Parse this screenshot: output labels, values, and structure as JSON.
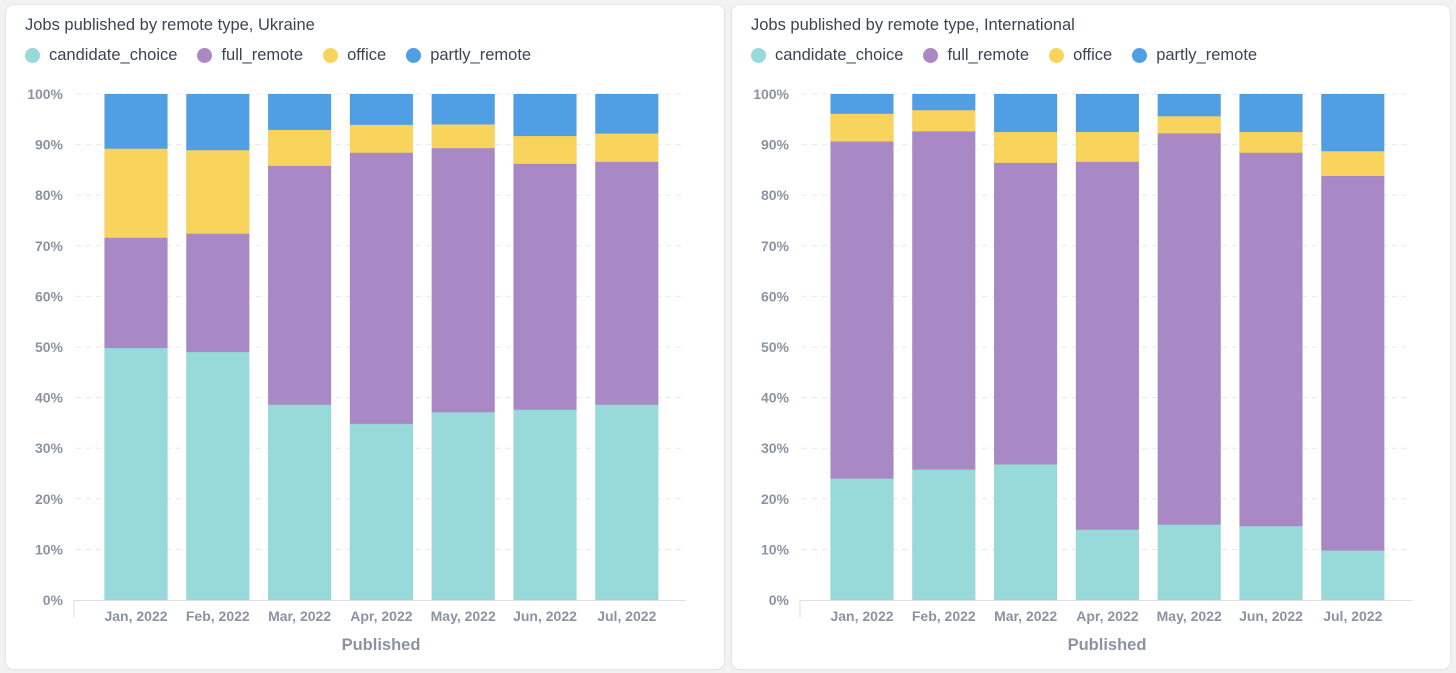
{
  "chart_data": [
    {
      "type": "bar",
      "stacked": true,
      "normalized": true,
      "title": "Jobs published by remote type, Ukraine",
      "xlabel": "Published",
      "ylabel": "",
      "ylim": [
        0,
        100
      ],
      "yticks": [
        "0%",
        "10%",
        "20%",
        "30%",
        "40%",
        "50%",
        "60%",
        "70%",
        "80%",
        "90%",
        "100%"
      ],
      "categories": [
        "Jan, 2022",
        "Feb, 2022",
        "Mar, 2022",
        "Apr, 2022",
        "May, 2022",
        "Jun, 2022",
        "Jul, 2022"
      ],
      "legend_position": "top-left",
      "grid": true,
      "series": [
        {
          "name": "candidate_choice",
          "color": "#98d9d9",
          "values": [
            49.8,
            49.0,
            38.6,
            34.8,
            37.1,
            37.6,
            38.6
          ]
        },
        {
          "name": "full_remote",
          "color": "#a989c5",
          "values": [
            21.8,
            23.4,
            47.2,
            53.6,
            52.2,
            48.6,
            48.0
          ]
        },
        {
          "name": "office",
          "color": "#f9d45c",
          "values": [
            17.6,
            16.5,
            7.1,
            5.5,
            4.7,
            5.5,
            5.6
          ]
        },
        {
          "name": "partly_remote",
          "color": "#509ee3",
          "values": [
            10.8,
            11.1,
            7.1,
            6.1,
            6.0,
            8.3,
            7.8
          ]
        }
      ]
    },
    {
      "type": "bar",
      "stacked": true,
      "normalized": true,
      "title": "Jobs published by remote type, International",
      "xlabel": "Published",
      "ylabel": "",
      "ylim": [
        0,
        100
      ],
      "yticks": [
        "0%",
        "10%",
        "20%",
        "30%",
        "40%",
        "50%",
        "60%",
        "70%",
        "80%",
        "90%",
        "100%"
      ],
      "categories": [
        "Jan, 2022",
        "Feb, 2022",
        "Mar, 2022",
        "Apr, 2022",
        "May, 2022",
        "Jun, 2022",
        "Jul, 2022"
      ],
      "legend_position": "top-left",
      "grid": true,
      "series": [
        {
          "name": "candidate_choice",
          "color": "#98d9d9",
          "values": [
            24.0,
            25.8,
            26.8,
            13.9,
            14.9,
            14.6,
            9.8
          ]
        },
        {
          "name": "full_remote",
          "color": "#a989c5",
          "values": [
            66.6,
            66.8,
            59.6,
            72.7,
            77.3,
            73.8,
            74.0
          ]
        },
        {
          "name": "office",
          "color": "#f9d45c",
          "values": [
            5.5,
            4.2,
            6.1,
            5.9,
            3.4,
            4.1,
            4.9
          ]
        },
        {
          "name": "partly_remote",
          "color": "#509ee3",
          "values": [
            3.9,
            3.2,
            7.5,
            7.5,
            4.4,
            7.5,
            11.3
          ]
        }
      ]
    }
  ]
}
